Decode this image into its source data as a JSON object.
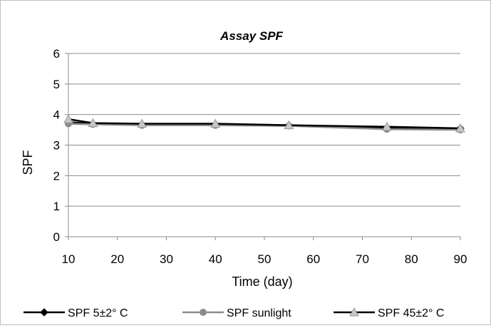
{
  "chart_data": {
    "type": "line",
    "title": "Assay SPF",
    "xlabel": "Time (day)",
    "ylabel": "SPF",
    "xlim": [
      10,
      90
    ],
    "ylim": [
      0,
      6
    ],
    "x_ticks": [
      10,
      20,
      30,
      40,
      50,
      60,
      70,
      80,
      90
    ],
    "y_ticks": [
      0,
      1,
      2,
      3,
      4,
      5,
      6
    ],
    "grid": "horizontal",
    "legend_position": "bottom",
    "series": [
      {
        "name": "SPF 5±2° C",
        "marker": "diamond",
        "color": "#000000",
        "x": [
          10,
          15,
          25,
          40,
          55,
          75,
          90
        ],
        "y": [
          3.75,
          3.7,
          3.68,
          3.67,
          3.65,
          3.55,
          3.55
        ]
      },
      {
        "name": "SPF sunlight",
        "marker": "circle",
        "color": "#8c8c8c",
        "x": [
          10,
          15,
          25,
          40,
          55,
          75,
          90
        ],
        "y": [
          3.7,
          3.68,
          3.65,
          3.65,
          3.63,
          3.52,
          3.5
        ]
      },
      {
        "name": "SPF 45±2° C",
        "marker": "triangle",
        "color": "#000000",
        "marker_color": "#c8c8c8",
        "x": [
          10,
          15,
          25,
          40,
          55,
          75,
          90
        ],
        "y": [
          3.85,
          3.72,
          3.7,
          3.7,
          3.65,
          3.6,
          3.55
        ]
      }
    ]
  }
}
